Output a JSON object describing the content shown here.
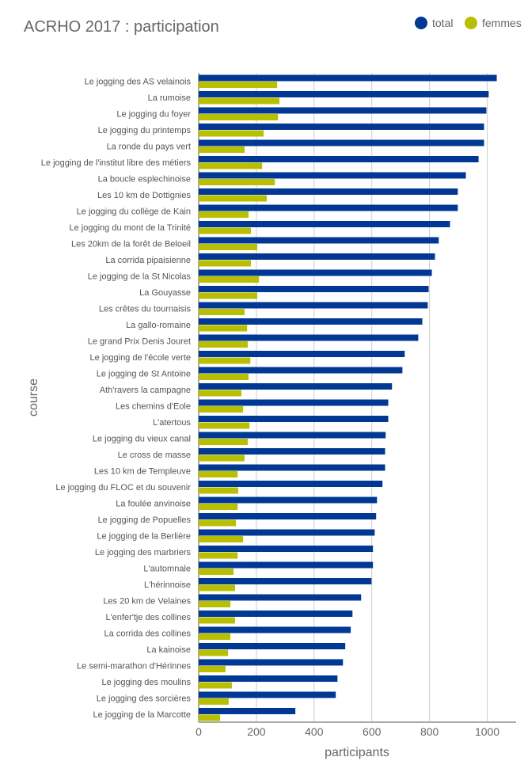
{
  "chart_data": {
    "type": "bar",
    "orientation": "horizontal",
    "title": "ACRHO 2017 : participation",
    "xlabel": "participants",
    "ylabel": "course",
    "xlim": [
      0,
      1100
    ],
    "xticks": [
      0,
      200,
      400,
      600,
      800,
      1000
    ],
    "grid": true,
    "legend_position": "top-right",
    "categories": [
      "Le jogging des AS velainois",
      "La rumoise",
      "Le jogging du foyer",
      "Le jogging du printemps",
      "La ronde du pays vert",
      "Le jogging de l'institut libre des métiers",
      "La boucle esplechinoise",
      "Les 10 km de Dottignies",
      "Le jogging du collège de Kain",
      "Le jogging du mont de la Trinité",
      "Les 20km de la forêt de Beloeil",
      "La corrida pipaisienne",
      "Le jogging de la St Nicolas",
      "La Gouyasse",
      "Les crêtes du tournaisis",
      "La gallo-romaine",
      "Le grand Prix Denis Jouret",
      "Le jogging de l'école verte",
      "Le jogging de St Antoine",
      "Ath'ravers la campagne",
      "Les chemins d'Eole",
      "L'atertous",
      "Le jogging du vieux canal",
      "Le cross de masse",
      "Les 10 km de Templeuve",
      "Le jogging du FLOC et du souvenir",
      "La foulée anvinoise",
      "Le jogging de Popuelles",
      "Le jogging de la Berlière",
      "Le jogging des marbriers",
      "L'automnale",
      "L'hérinnoise",
      "Les 20 km de Velaines",
      "L'enfer'tje des collines",
      "La corrida des collines",
      "La kainoise",
      "Le semi-marathon d'Hérinnes",
      "Le jogging des moulins",
      "Le jogging des sorcières",
      "Le jogging de la Marcotte"
    ],
    "series": [
      {
        "name": "total",
        "color": "#003893",
        "values": [
          1033,
          1005,
          997,
          989,
          989,
          970,
          926,
          898,
          898,
          871,
          832,
          819,
          808,
          797,
          794,
          775,
          761,
          714,
          706,
          670,
          657,
          657,
          648,
          646,
          646,
          637,
          618,
          615,
          610,
          604,
          604,
          599,
          563,
          533,
          527,
          508,
          500,
          481,
          475,
          335
        ]
      },
      {
        "name": "femmes",
        "color": "#b8bf00",
        "values": [
          272,
          280,
          275,
          225,
          159,
          220,
          264,
          236,
          173,
          181,
          203,
          181,
          209,
          203,
          159,
          168,
          170,
          179,
          173,
          148,
          154,
          176,
          170,
          159,
          135,
          137,
          135,
          129,
          154,
          135,
          121,
          126,
          110,
          126,
          110,
          102,
          93,
          115,
          104,
          74
        ]
      }
    ]
  }
}
